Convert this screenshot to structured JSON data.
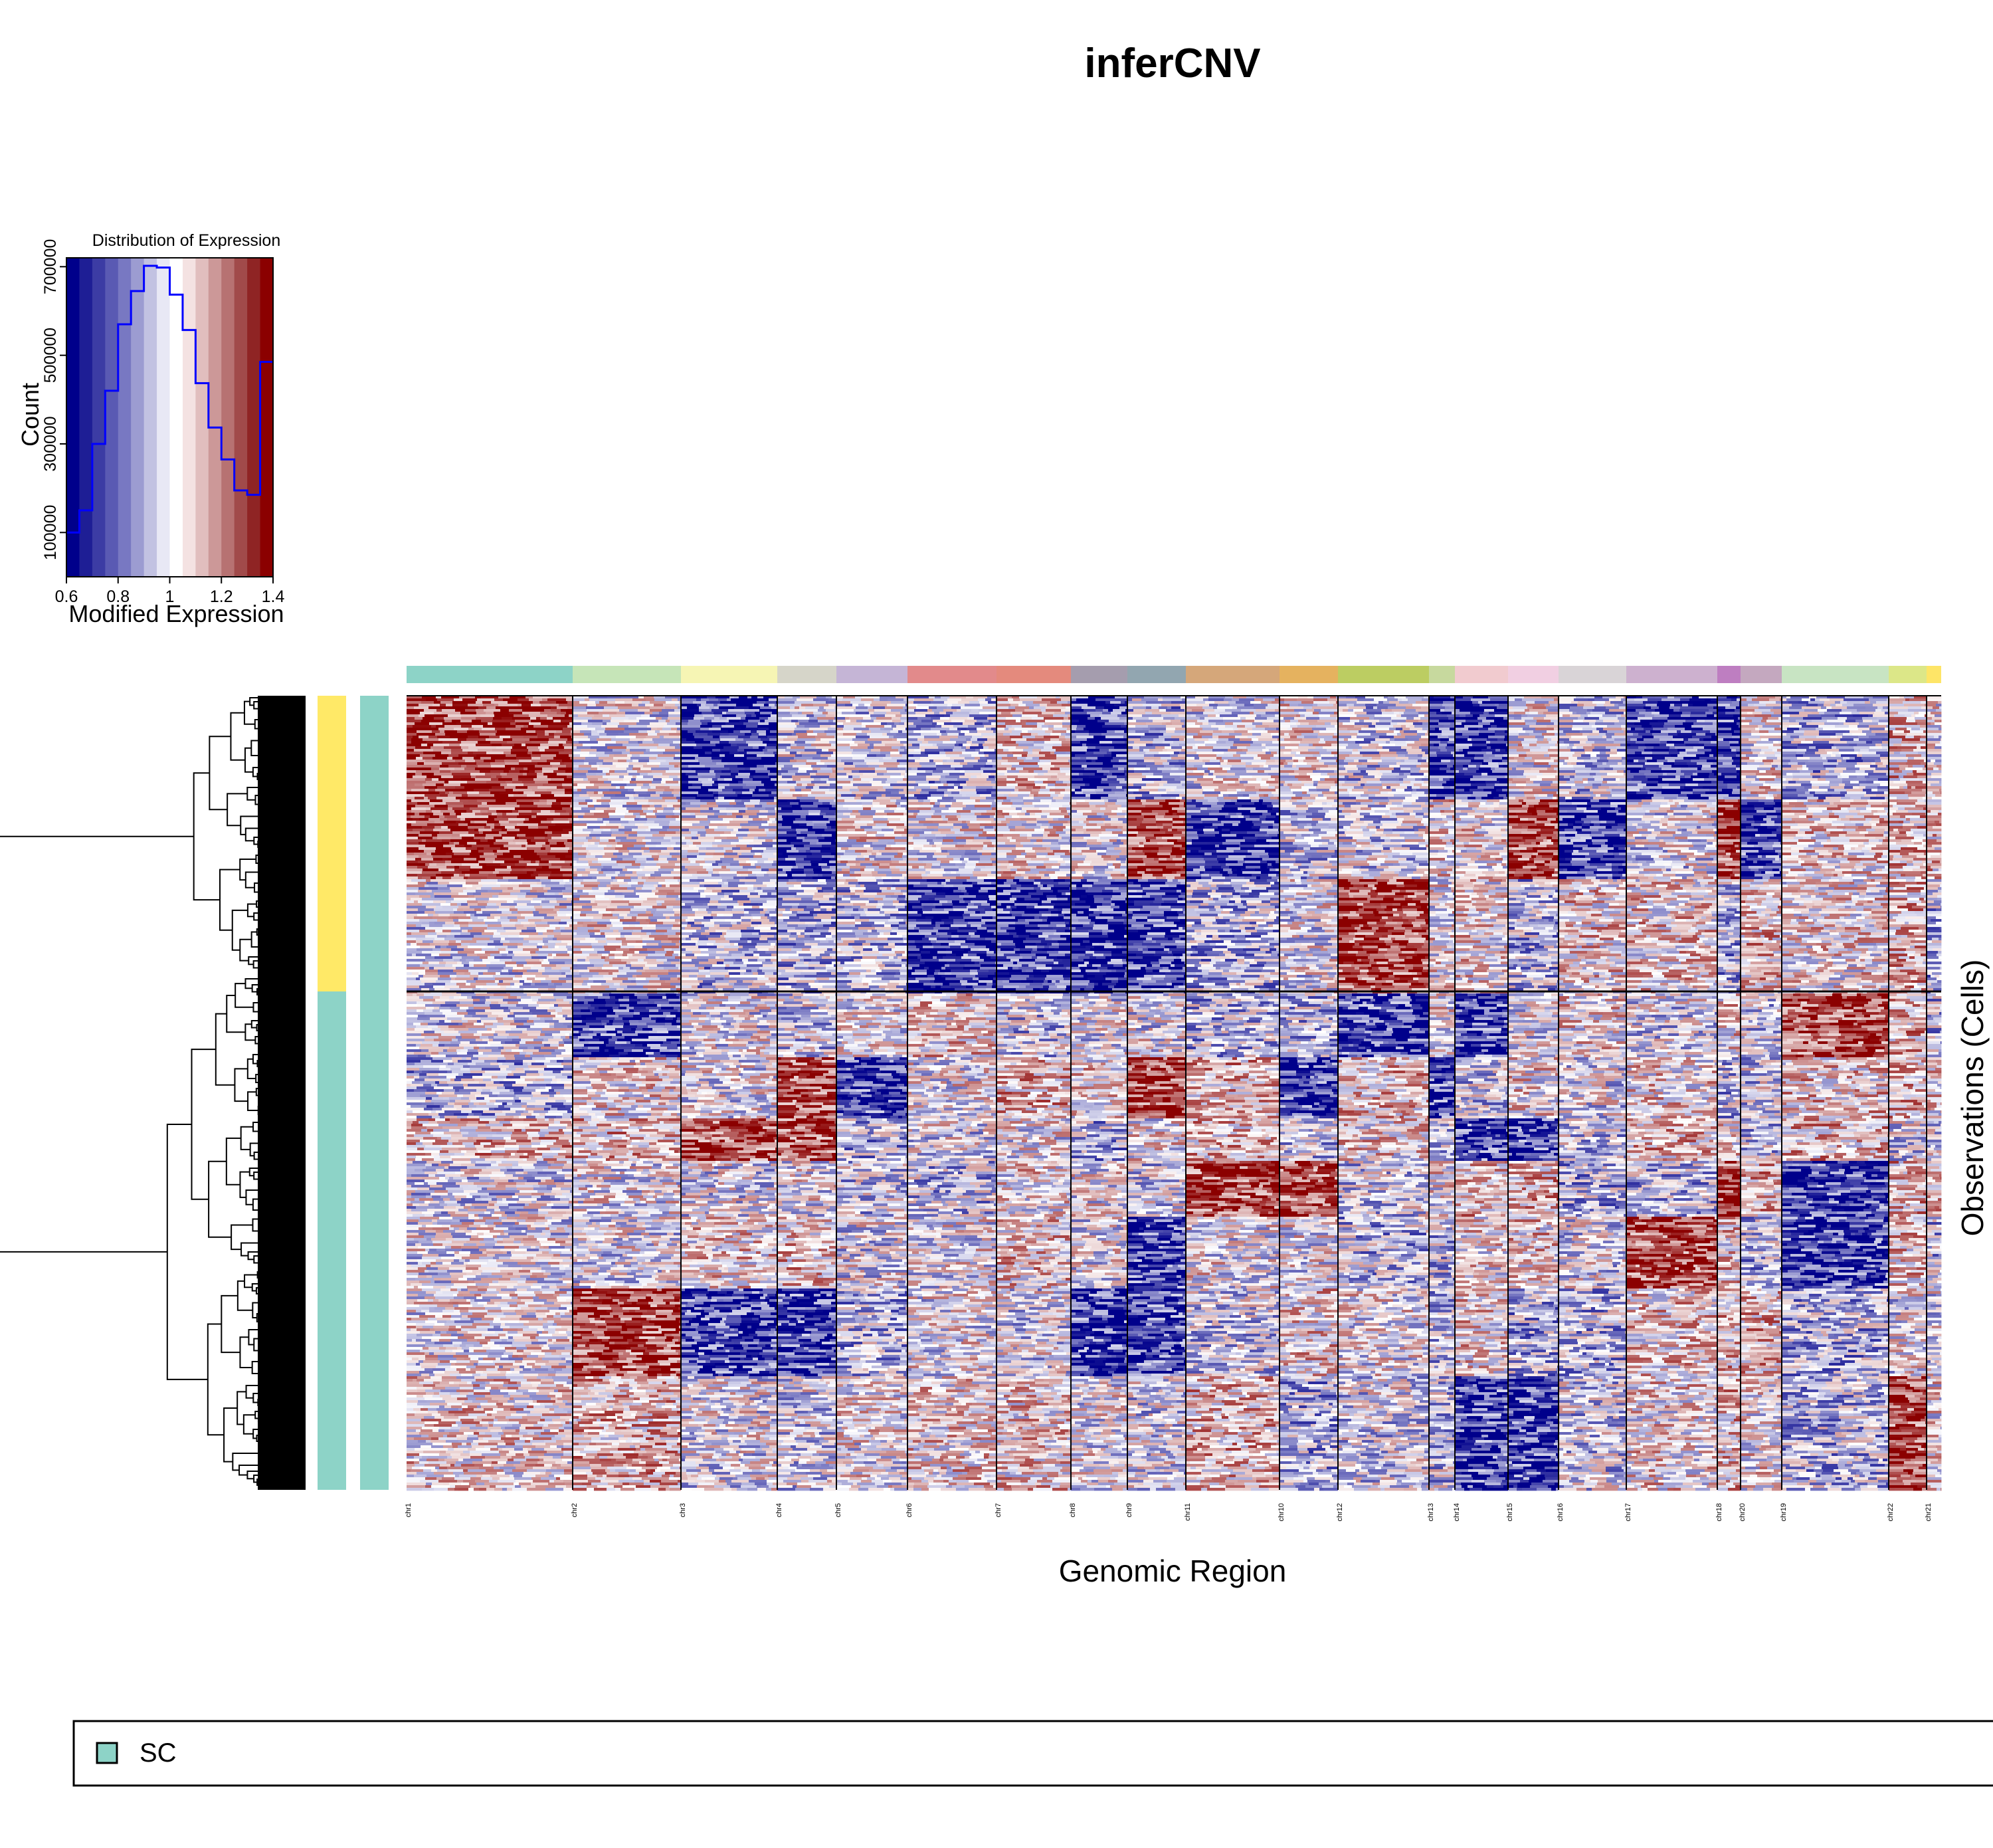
{
  "title": "inferCNV",
  "chart_data": [
    {
      "type": "bar",
      "title": "Distribution of Expression",
      "xlabel": "Modified Expression",
      "ylabel": "Count",
      "xlim": [
        0.6,
        1.4
      ],
      "ylim": [
        0,
        720000
      ],
      "x_ticks": [
        "0.6",
        "0.8",
        "1",
        "1.2",
        "1.4"
      ],
      "y_ticks": [
        "100000",
        "300000",
        "500000",
        "700000"
      ],
      "bin_width": 0.05,
      "bins": [
        0.6,
        0.65,
        0.7,
        0.75,
        0.8,
        0.85,
        0.9,
        0.95,
        1.0,
        1.05,
        1.1,
        1.15,
        1.2,
        1.25,
        1.3,
        1.35
      ],
      "values": [
        100000,
        150000,
        300000,
        420000,
        570000,
        645000,
        702000,
        698000,
        637000,
        557000,
        437000,
        337000,
        265000,
        195000,
        185000,
        485000
      ],
      "color_scale": [
        "#00008B",
        "#1E1E95",
        "#3C3CA4",
        "#5A5AB3",
        "#7878C2",
        "#9C9CD1",
        "#C2C2E2",
        "#E8E8F5",
        "#FFFFFF",
        "#F4E2E2",
        "#E1BEBE",
        "#CC9898",
        "#B77272",
        "#A14A4A",
        "#8F2424",
        "#8B0000"
      ],
      "line_color": "#0000FF"
    },
    {
      "type": "heatmap",
      "xlabel": "Genomic Region",
      "ylabel": "Observations (Cells)",
      "columns": [
        "chr1",
        "chr2",
        "chr3",
        "chr4",
        "chr5",
        "chr6",
        "chr7",
        "chr8",
        "chr9",
        "chr11",
        "chr10",
        "chr12",
        "chr13",
        "chr14",
        "chr15",
        "chr16",
        "chr17",
        "chr18",
        "chr20",
        "chr19",
        "chr22",
        "chr21"
      ],
      "chromosome_colors": [
        "#8DD3C7",
        "#C6E5B8",
        "#F6F5B4",
        "#D6D5C9",
        "#C5B5D6",
        "#E28A8B",
        "#E48A7D",
        "#A59DAE",
        "#92A6B0",
        "#D5A77A",
        "#E5B25F",
        "#BCCD62",
        "#C7D99E",
        "#F1CBCF",
        "#F1CFE2",
        "#D9D4D7",
        "#CDB1CF",
        "#BE7EC1",
        "#C4A8BF",
        "#C8E4C3",
        "#DCE788",
        "#FEE567"
      ],
      "groups": [
        "1",
        "2"
      ],
      "group_colors": [
        "#FFE967",
        "#8DD3C7"
      ],
      "value_range": [
        0.6,
        1.4
      ],
      "low_color": "#00008B",
      "mid_color": "#FFFFFF",
      "high_color": "#8B0000"
    }
  ],
  "legend": {
    "items": [
      {
        "label": "SC",
        "color": "#8DD3C7"
      }
    ]
  }
}
